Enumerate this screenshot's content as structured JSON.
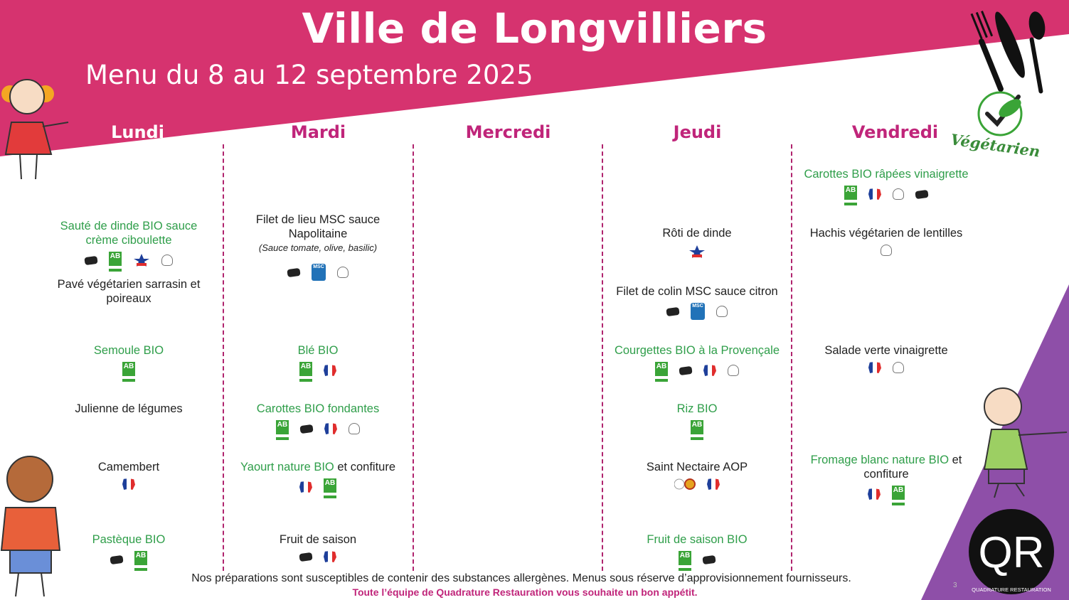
{
  "header": {
    "title": "Ville de Longvilliers",
    "subtitle": "Menu du 8 au 12 septembre 2025"
  },
  "colors": {
    "pink": "#d6336f",
    "purple": "#8e4fa8",
    "green": "#2f9e4a",
    "magenta": "#c0257a"
  },
  "days": [
    "Lundi",
    "Mardi",
    "Mercredi",
    "Jeudi",
    "Vendredi"
  ],
  "menu": {
    "vendredi_entree": {
      "text": "Carottes BIO râpées vinaigrette",
      "icons": [
        "ab-bio-icon",
        "french-flag-icon",
        "chef-hat-icon",
        "fait-maison-icon"
      ]
    },
    "lundi_plat1": {
      "text": "Sauté de dinde BIO sauce crème ciboulette",
      "icons": [
        "fait-maison-icon",
        "ab-bio-icon",
        "bleu-blanc-coeur-icon",
        "chef-hat-icon"
      ]
    },
    "lundi_plat2": {
      "text": "Pavé végétarien sarrasin et poireaux"
    },
    "mardi_plat": {
      "text": "Filet de lieu MSC sauce Napolitaine",
      "note": "(Sauce tomate, olive, basilic)",
      "icons": [
        "fait-maison-icon",
        "msc-label-icon",
        "chef-hat-icon"
      ]
    },
    "jeudi_plat1": {
      "text": "Rôti de dinde",
      "icons": [
        "bleu-blanc-coeur-icon"
      ]
    },
    "jeudi_plat2": {
      "text": "Filet de colin MSC sauce citron",
      "icons": [
        "fait-maison-icon",
        "msc-label-icon",
        "chef-hat-icon"
      ]
    },
    "vendredi_plat": {
      "text": "Hachis végétarien de lentilles",
      "icons": [
        "chef-hat-icon"
      ]
    },
    "lundi_accomp": {
      "text": "Semoule BIO",
      "icons": [
        "ab-bio-icon"
      ]
    },
    "mardi_accomp": {
      "text": "Blé BIO",
      "icons": [
        "ab-bio-icon",
        "french-flag-icon"
      ]
    },
    "jeudi_accomp": {
      "text": "Courgettes BIO à la Provençale",
      "icons": [
        "ab-bio-icon",
        "fait-maison-icon",
        "french-flag-icon",
        "chef-hat-icon"
      ]
    },
    "vendredi_accomp": {
      "text": "Salade verte vinaigrette",
      "icons": [
        "french-flag-icon",
        "chef-hat-icon"
      ]
    },
    "lundi_legume": {
      "text": "Julienne de légumes"
    },
    "mardi_legume": {
      "text": "Carottes BIO fondantes",
      "icons": [
        "ab-bio-icon",
        "fait-maison-icon",
        "french-flag-icon",
        "chef-hat-icon"
      ]
    },
    "jeudi_legume": {
      "text": "Riz BIO",
      "icons": [
        "ab-bio-icon"
      ]
    },
    "lundi_laitage": {
      "text": "Camembert",
      "icons": [
        "french-flag-icon"
      ]
    },
    "mardi_laitage": {
      "text_bio": "Yaourt nature BIO",
      "text_rest": " et confiture",
      "icons": [
        "french-flag-icon",
        "ab-bio-icon"
      ]
    },
    "jeudi_laitage": {
      "text": "Saint Nectaire AOP",
      "icons": [
        "aop-label-icon",
        "french-flag-icon"
      ]
    },
    "vendredi_laitage": {
      "text_bio": "Fromage blanc nature BIO",
      "text_rest": " et confiture",
      "icons": [
        "french-flag-icon",
        "ab-bio-icon"
      ]
    },
    "lundi_dessert": {
      "text": "Pastèque BIO",
      "icons": [
        "fait-maison-icon",
        "ab-bio-icon"
      ]
    },
    "mardi_dessert": {
      "text": "Fruit de saison",
      "icons": [
        "fait-maison-icon",
        "french-flag-icon"
      ]
    },
    "jeudi_dessert": {
      "text": "Fruit de saison BIO",
      "icons": [
        "ab-bio-icon",
        "fait-maison-icon"
      ]
    }
  },
  "labels": {
    "ab": "AB",
    "msc": "MSC",
    "vegetarien": "Végétarien",
    "qr": "QR",
    "qr_name": "QUADRATURE RESTAURATION",
    "page": "3"
  },
  "footer": {
    "disclaimer": "Nos préparations sont susceptibles de contenir des substances allergènes. Menus sous réserve d’approvisionnement fournisseurs.",
    "wish": "Toute l’équipe de Quadrature Restauration vous souhaite un bon appétit."
  }
}
